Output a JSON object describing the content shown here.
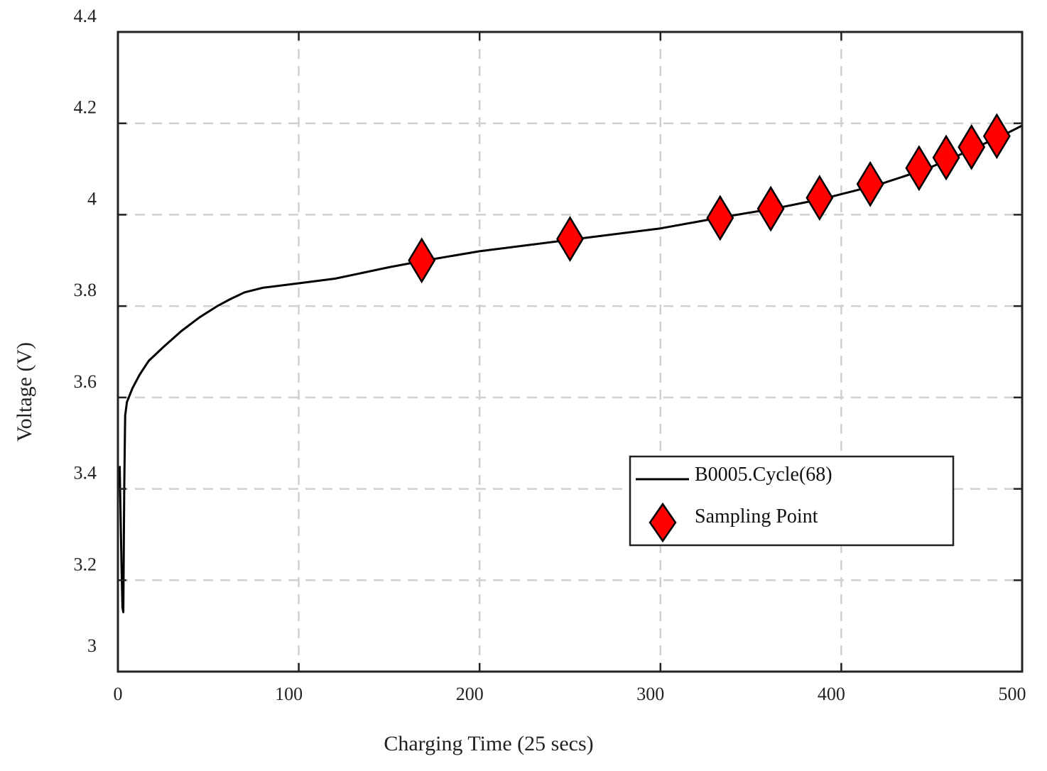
{
  "chart_data": {
    "type": "line",
    "xlabel": "Charging Time (25 secs)",
    "ylabel": "Voltage (V)",
    "xlim": [
      0,
      500
    ],
    "ylim": [
      3.0,
      4.4
    ],
    "xticks": [
      0,
      100,
      200,
      300,
      400,
      500
    ],
    "yticks": [
      3,
      3.2,
      3.4,
      3.6,
      3.8,
      4,
      4.2,
      4.4
    ],
    "xtick_labels": [
      "0",
      "100",
      "200",
      "300",
      "400",
      "500"
    ],
    "ytick_labels": [
      "3",
      "3.2",
      "3.4",
      "3.6",
      "3.8",
      "4",
      "4.2",
      "4.4"
    ],
    "grid": true,
    "legend_position": "lower-right",
    "colors": {
      "line": "#000000",
      "marker_fill": "#ff0000",
      "marker_edge": "#000000",
      "grid": "#d0d0d0"
    },
    "series": [
      {
        "name": "B0005.Cycle(68)",
        "kind": "line",
        "x": [
          1,
          2,
          2.5,
          3,
          3.5,
          4,
          5,
          8,
          12,
          17,
          25,
          35,
          45,
          55,
          62,
          70,
          80,
          100,
          120,
          150,
          170,
          200,
          250,
          300,
          335,
          365,
          390,
          420,
          447,
          462,
          476,
          490,
          500
        ],
        "y": [
          3.45,
          3.23,
          3.14,
          3.13,
          3.4,
          3.56,
          3.59,
          3.62,
          3.65,
          3.68,
          3.71,
          3.745,
          3.775,
          3.8,
          3.815,
          3.83,
          3.84,
          3.85,
          3.86,
          3.885,
          3.9,
          3.92,
          3.945,
          3.97,
          3.995,
          4.015,
          4.035,
          4.065,
          4.1,
          4.125,
          4.15,
          4.175,
          4.195
        ]
      },
      {
        "name": "Sampling Point",
        "kind": "scatter",
        "marker": "diamond",
        "x": [
          168,
          250,
          333,
          361,
          388,
          416,
          443,
          458,
          472,
          486
        ],
        "y": [
          3.9,
          3.947,
          3.993,
          4.013,
          4.037,
          4.067,
          4.102,
          4.125,
          4.148,
          4.172
        ]
      }
    ]
  }
}
